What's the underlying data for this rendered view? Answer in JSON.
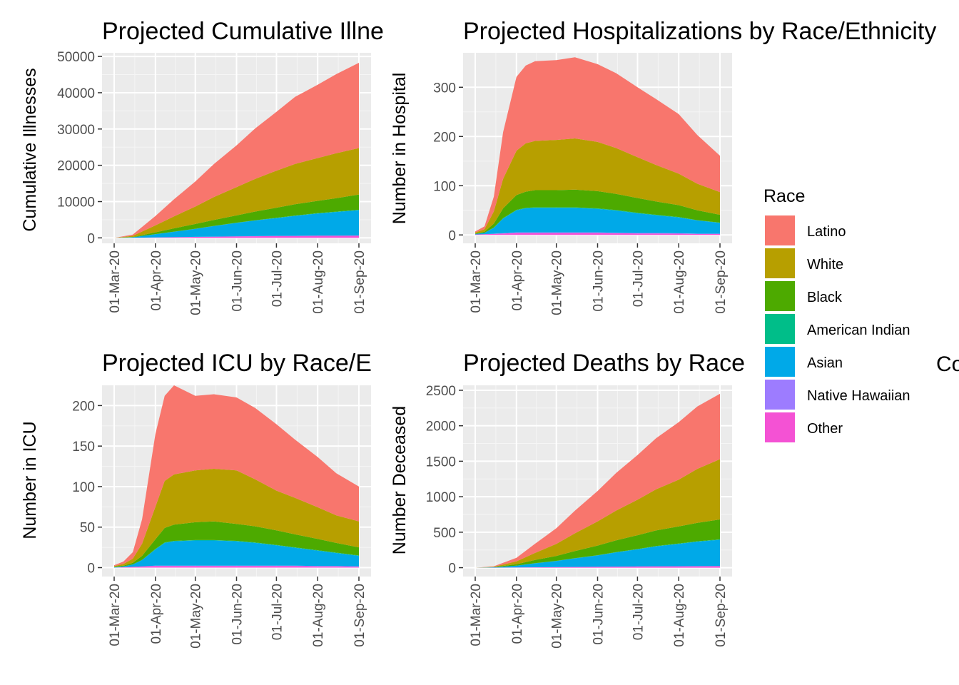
{
  "legend": {
    "title": "Race",
    "entries": [
      {
        "name": "Latino",
        "color": "#F8766D"
      },
      {
        "name": "White",
        "color": "#B79F00"
      },
      {
        "name": "Black",
        "color": "#4DAA00"
      },
      {
        "name": "American Indian",
        "color": "#00BE89"
      },
      {
        "name": "Asian",
        "color": "#00A9E8"
      },
      {
        "name": "Native Hawaiian",
        "color": "#9D7CFF"
      },
      {
        "name": "Other",
        "color": "#F452D4"
      }
    ]
  },
  "stray_text": "Co",
  "chart_data": [
    {
      "type": "area",
      "stacked": true,
      "title": "Projected Cumulative Illne",
      "ylabel": "Cumulative Illnesses",
      "xlabel": "",
      "x": [
        "2020-03-01",
        "2020-03-15",
        "2020-04-01",
        "2020-04-15",
        "2020-05-01",
        "2020-05-15",
        "2020-06-01",
        "2020-06-15",
        "2020-07-01",
        "2020-07-15",
        "2020-08-01",
        "2020-08-15",
        "2020-09-01"
      ],
      "xticks": [
        "01-Mar-20",
        "01-Apr-20",
        "01-May-20",
        "01-Jun-20",
        "01-Jul-20",
        "01-Aug-20",
        "01-Sep-20"
      ],
      "yticks": [
        0,
        10000,
        20000,
        30000,
        40000,
        50000
      ],
      "ylim": [
        -1500,
        51000
      ],
      "grid": true,
      "series": [
        {
          "name": "Other",
          "values": [
            0,
            20,
            100,
            180,
            260,
            330,
            400,
            450,
            500,
            530,
            560,
            580,
            600
          ]
        },
        {
          "name": "Native Hawaiian",
          "values": [
            0,
            2,
            10,
            15,
            20,
            25,
            30,
            35,
            40,
            42,
            44,
            46,
            48
          ]
        },
        {
          "name": "Asian",
          "values": [
            0,
            150,
            900,
            1500,
            2200,
            2900,
            3700,
            4300,
            4900,
            5500,
            6100,
            6500,
            7000
          ]
        },
        {
          "name": "American Indian",
          "values": [
            0,
            5,
            20,
            30,
            40,
            50,
            60,
            70,
            80,
            85,
            90,
            95,
            100
          ]
        },
        {
          "name": "Black",
          "values": [
            0,
            80,
            500,
            900,
            1300,
            1650,
            2000,
            2400,
            2800,
            3100,
            3400,
            3700,
            4200
          ]
        },
        {
          "name": "White",
          "values": [
            0,
            300,
            1900,
            3300,
            4800,
            6300,
            7800,
            9000,
            10200,
            11100,
            11800,
            12400,
            12800
          ]
        },
        {
          "name": "Latino",
          "values": [
            0,
            350,
            2600,
            4700,
            6900,
            9100,
            11500,
            13900,
            16200,
            18500,
            20200,
            21800,
            23500
          ]
        }
      ]
    },
    {
      "type": "area",
      "stacked": true,
      "title": "Projected Hospitalizations by Race/Ethnicity",
      "ylabel": "Number in Hospital",
      "xlabel": "",
      "x": [
        "2020-03-01",
        "2020-03-08",
        "2020-03-15",
        "2020-03-22",
        "2020-04-01",
        "2020-04-08",
        "2020-04-15",
        "2020-05-01",
        "2020-05-15",
        "2020-06-01",
        "2020-06-15",
        "2020-07-01",
        "2020-07-15",
        "2020-08-01",
        "2020-08-15",
        "2020-09-01"
      ],
      "xticks": [
        "01-Mar-20",
        "01-Apr-20",
        "01-May-20",
        "01-Jun-20",
        "01-Jul-20",
        "01-Aug-20",
        "01-Sep-20"
      ],
      "yticks": [
        0,
        100,
        200,
        300
      ],
      "ylim": [
        -17,
        370
      ],
      "grid": true,
      "series": [
        {
          "name": "Other",
          "values": [
            1,
            1.5,
            2,
            3,
            4,
            4,
            4,
            4,
            4,
            4,
            3.5,
            3,
            3,
            2.5,
            2,
            2
          ]
        },
        {
          "name": "Native Hawaiian",
          "values": [
            0,
            0,
            0.5,
            0.5,
            1,
            1,
            1,
            1,
            1,
            1,
            1,
            1,
            1,
            1,
            0.5,
            0.5
          ]
        },
        {
          "name": "Asian",
          "values": [
            1,
            3,
            12,
            30,
            45,
            49,
            50,
            50,
            50,
            48,
            45,
            40,
            36,
            32,
            27,
            22
          ]
        },
        {
          "name": "American Indian",
          "values": [
            0,
            0,
            0.5,
            0.5,
            1,
            1,
            1,
            1,
            1,
            1,
            1,
            1,
            1,
            1,
            0.5,
            0.5
          ]
        },
        {
          "name": "Black",
          "values": [
            1,
            2,
            8,
            20,
            30,
            33,
            35,
            35,
            36,
            35,
            33,
            30,
            27,
            24,
            20,
            16
          ]
        },
        {
          "name": "White",
          "values": [
            2,
            5,
            25,
            60,
            90,
            98,
            100,
            102,
            104,
            100,
            93,
            83,
            74,
            64,
            54,
            46
          ]
        },
        {
          "name": "Latino",
          "values": [
            2,
            6,
            30,
            95,
            150,
            158,
            162,
            162,
            165,
            158,
            152,
            142,
            134,
            121,
            99,
            74
          ]
        }
      ]
    },
    {
      "type": "area",
      "stacked": true,
      "title": "Projected ICU by Race/E",
      "ylabel": "Number in ICU",
      "xlabel": "",
      "x": [
        "2020-03-01",
        "2020-03-08",
        "2020-03-15",
        "2020-03-22",
        "2020-04-01",
        "2020-04-08",
        "2020-04-15",
        "2020-05-01",
        "2020-05-15",
        "2020-06-01",
        "2020-06-15",
        "2020-07-01",
        "2020-07-15",
        "2020-08-01",
        "2020-08-15",
        "2020-09-01"
      ],
      "xticks": [
        "01-Mar-20",
        "01-Apr-20",
        "01-May-20",
        "01-Jun-20",
        "01-Jul-20",
        "01-Aug-20",
        "01-Sep-20"
      ],
      "yticks": [
        0,
        50,
        100,
        150,
        200
      ],
      "ylim": [
        -11,
        225
      ],
      "grid": true,
      "series": [
        {
          "name": "Other",
          "values": [
            0,
            0.5,
            1,
            1.5,
            2,
            2,
            2,
            2,
            2,
            2,
            2,
            2,
            2,
            1.5,
            1.5,
            1
          ]
        },
        {
          "name": "Native Hawaiian",
          "values": [
            0,
            0,
            0,
            0,
            0.5,
            0.5,
            0.5,
            0.5,
            0.5,
            0.5,
            0.5,
            0.5,
            0.5,
            0.5,
            0.5,
            0.5
          ]
        },
        {
          "name": "Asian",
          "values": [
            0.5,
            1,
            3,
            8,
            20,
            28,
            30,
            31,
            31,
            30,
            28,
            25,
            22,
            19,
            16,
            13
          ]
        },
        {
          "name": "American Indian",
          "values": [
            0,
            0,
            0,
            0,
            0.5,
            0.5,
            0.5,
            0.5,
            0.5,
            0.5,
            0.5,
            0.5,
            0.5,
            0.5,
            0.5,
            0.5
          ]
        },
        {
          "name": "Black",
          "values": [
            0.5,
            1,
            2,
            5,
            12,
            18,
            20,
            22,
            23,
            21,
            20,
            18,
            16,
            14,
            12,
            10
          ]
        },
        {
          "name": "White",
          "values": [
            1,
            2,
            5,
            15,
            40,
            58,
            62,
            64,
            65,
            66,
            58,
            49,
            45,
            39,
            34,
            32
          ]
        },
        {
          "name": "Latino",
          "values": [
            1,
            3,
            8,
            30,
            90,
            105,
            110,
            92,
            92,
            90,
            88,
            82,
            72,
            62,
            52,
            43
          ]
        }
      ]
    },
    {
      "type": "area",
      "stacked": true,
      "title": "Projected Deaths by Race",
      "ylabel": "Number Deceased",
      "xlabel": "",
      "x": [
        "2020-03-01",
        "2020-03-15",
        "2020-04-01",
        "2020-04-15",
        "2020-05-01",
        "2020-05-15",
        "2020-06-01",
        "2020-06-15",
        "2020-07-01",
        "2020-07-15",
        "2020-08-01",
        "2020-08-15",
        "2020-09-01"
      ],
      "xticks": [
        "01-Mar-20",
        "01-Apr-20",
        "01-May-20",
        "01-Jun-20",
        "01-Jul-20",
        "01-Aug-20",
        "01-Sep-20"
      ],
      "yticks": [
        0,
        500,
        1000,
        1500,
        2000,
        2500
      ],
      "ylim": [
        -125,
        2570
      ],
      "grid": true,
      "series": [
        {
          "name": "Other",
          "values": [
            0,
            1,
            3,
            5,
            8,
            10,
            12,
            14,
            16,
            18,
            19,
            20,
            21
          ]
        },
        {
          "name": "Native Hawaiian",
          "values": [
            0,
            0,
            0,
            1,
            1,
            1,
            1,
            2,
            2,
            2,
            2,
            2,
            2
          ]
        },
        {
          "name": "Asian",
          "values": [
            0,
            5,
            25,
            55,
            85,
            120,
            160,
            200,
            240,
            280,
            315,
            345,
            370
          ]
        },
        {
          "name": "American Indian",
          "values": [
            0,
            0,
            1,
            2,
            2,
            3,
            3,
            4,
            4,
            5,
            5,
            5,
            6
          ]
        },
        {
          "name": "Black",
          "values": [
            0,
            3,
            20,
            45,
            70,
            100,
            135,
            165,
            195,
            220,
            240,
            260,
            280
          ]
        },
        {
          "name": "White",
          "values": [
            0,
            5,
            40,
            100,
            170,
            250,
            340,
            420,
            500,
            580,
            660,
            760,
            850
          ]
        },
        {
          "name": "Latino",
          "values": [
            0,
            6,
            50,
            130,
            220,
            320,
            430,
            530,
            630,
            720,
            810,
            880,
            921
          ]
        }
      ]
    }
  ]
}
